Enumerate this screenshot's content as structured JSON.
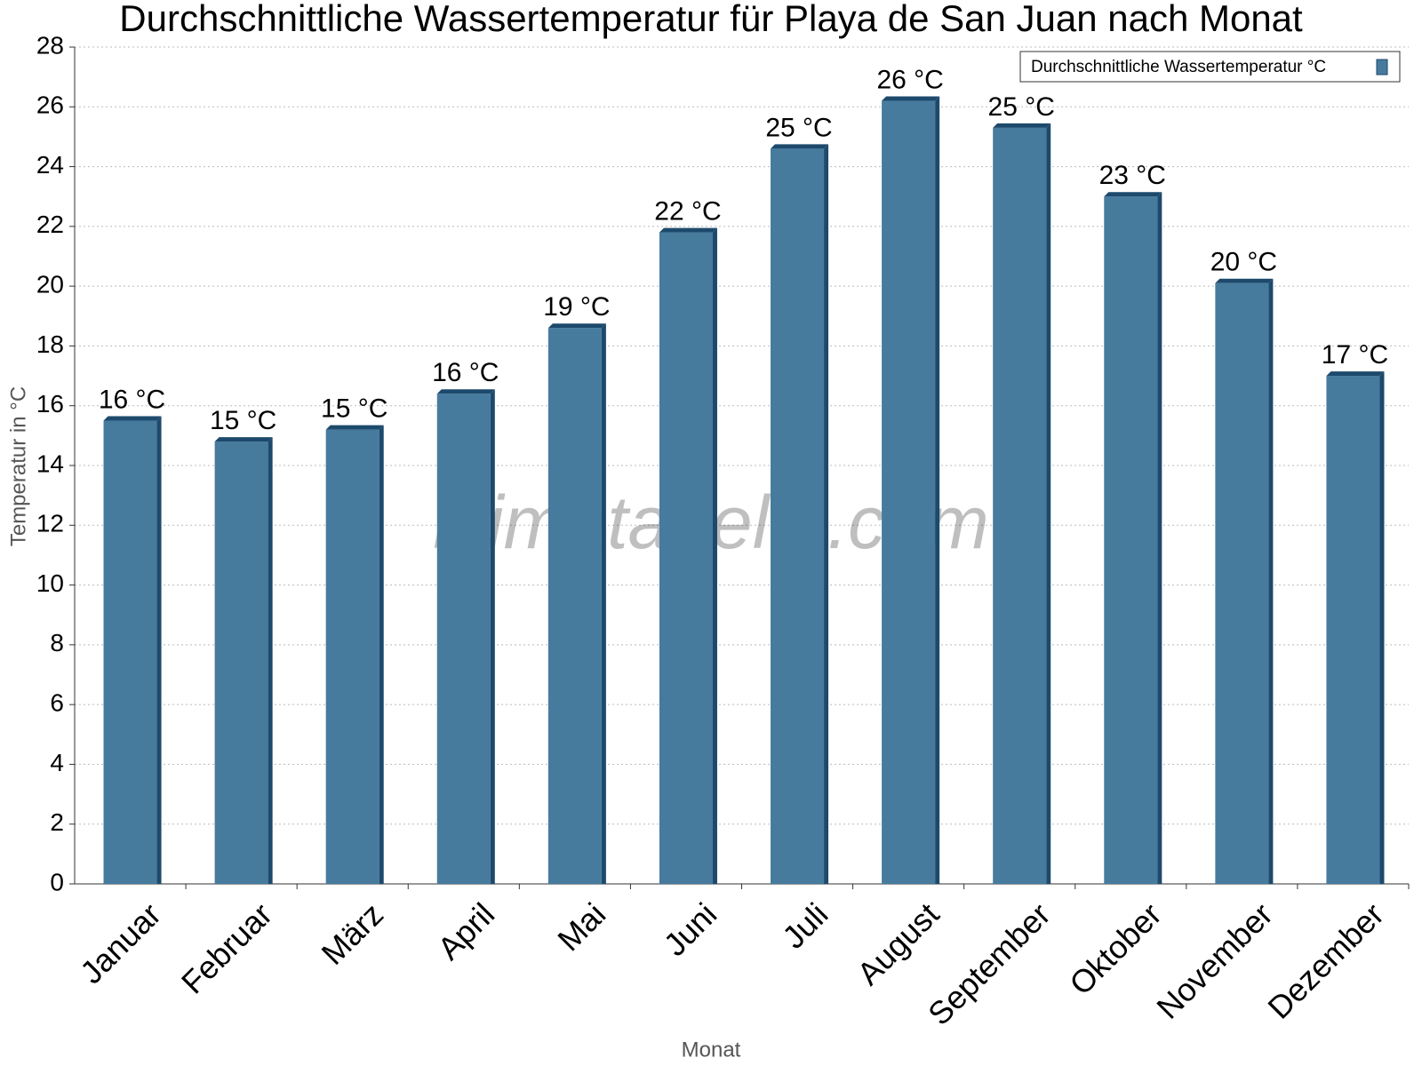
{
  "chart_data": {
    "type": "bar",
    "title": "Durchschnittliche Wassertemperatur für Playa de San Juan nach Monat",
    "x_label": "Monat",
    "y_label": "Temperatur in °C",
    "watermark": "klimatabelle.com",
    "categories": [
      "Januar",
      "Februar",
      "März",
      "April",
      "Mai",
      "Juni",
      "Juli",
      "August",
      "September",
      "Oktober",
      "November",
      "Dezember"
    ],
    "series": [
      {
        "name": "Durchschnittliche Wassertemperatur °C",
        "color": "#467b9e",
        "values": [
          15.5,
          14.8,
          15.2,
          16.4,
          18.6,
          21.8,
          24.6,
          26.2,
          25.3,
          23.0,
          20.1,
          17.0
        ],
        "value_labels": [
          "16 °C",
          "15 °C",
          "15 °C",
          "16 °C",
          "19 °C",
          "22 °C",
          "25 °C",
          "26 °C",
          "25 °C",
          "23 °C",
          "20 °C",
          "17 °C"
        ]
      }
    ],
    "ylim": [
      0,
      28
    ],
    "yticks": [
      0,
      2,
      4,
      6,
      8,
      10,
      12,
      14,
      16,
      18,
      20,
      22,
      24,
      26,
      28
    ],
    "grid": true,
    "legend": "top-right"
  }
}
